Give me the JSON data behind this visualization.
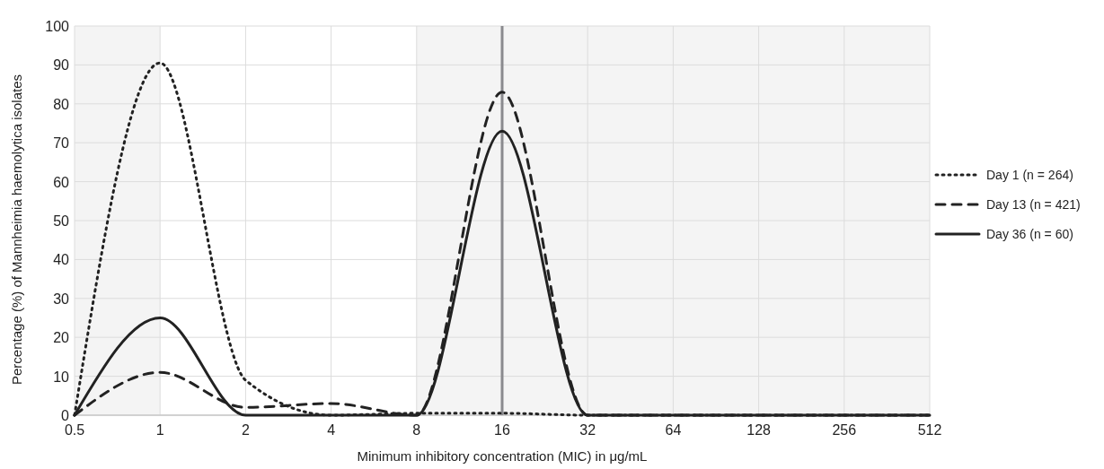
{
  "chart_data": {
    "type": "line",
    "xlabel": "Minimum inhibitory concentration (MIC) in μg/mL",
    "ylabel": "Percentage (%) of Mannheimia haemolytica isolates",
    "x": [
      0.5,
      1,
      2,
      4,
      8,
      16,
      32,
      64,
      128,
      256,
      512
    ],
    "series": [
      {
        "name": "Day 1 (n = 264)",
        "color": "#222222",
        "line_style": "dotted",
        "values": [
          0,
          90.5,
          9,
          0,
          0.5,
          0.5,
          0,
          0,
          0,
          0,
          0
        ]
      },
      {
        "name": "Day 13 (n = 421)",
        "color": "#222222",
        "line_style": "dashed",
        "values": [
          0,
          11,
          2,
          3,
          0,
          83,
          0,
          0,
          0,
          0,
          0
        ]
      },
      {
        "name": "Day 36 (n = 60)",
        "color": "#222222",
        "line_style": "solid",
        "values": [
          0,
          25,
          0,
          0,
          0,
          73,
          0,
          0,
          0,
          0,
          0
        ]
      }
    ],
    "log": "x",
    "xlim": [
      0.5,
      512
    ],
    "xticks": [
      0.5,
      1,
      2,
      4,
      8,
      16,
      32,
      64,
      128,
      256,
      512
    ],
    "ylim": [
      0,
      100
    ],
    "yticks": [
      0,
      10,
      20,
      30,
      40,
      50,
      60,
      70,
      80,
      90,
      100
    ],
    "grid": true,
    "legend": "right",
    "marker": "none",
    "ref_lines": [
      {
        "axis": "x",
        "value": 16,
        "color": "#8a8a8e"
      }
    ],
    "bands": [
      {
        "axis": "x",
        "from": 0.5,
        "to": 1,
        "color": "#f4f4f4"
      },
      {
        "axis": "x",
        "from": 8,
        "to": 512,
        "color": "#f4f4f4"
      }
    ]
  }
}
